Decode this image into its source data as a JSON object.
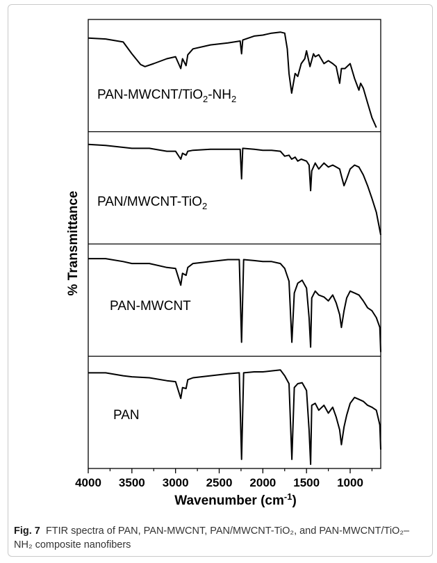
{
  "chart_data": {
    "type": "line",
    "xlabel": "Wavenumber (cm-1)",
    "ylabel": "% Transmittance",
    "xlim": [
      4000,
      650
    ],
    "xticks": [
      4000,
      3500,
      3000,
      2500,
      2000,
      1500,
      1000
    ],
    "series": [
      {
        "name": "PAN-MWCNT/TiO2-NH2",
        "x": [
          4000,
          3800,
          3600,
          3500,
          3400,
          3350,
          3250,
          3100,
          3000,
          2940,
          2920,
          2880,
          2860,
          2800,
          2600,
          2400,
          2260,
          2244,
          2230,
          2100,
          2000,
          1900,
          1800,
          1750,
          1720,
          1700,
          1670,
          1630,
          1600,
          1560,
          1520,
          1500,
          1460,
          1420,
          1400,
          1360,
          1300,
          1250,
          1200,
          1160,
          1120,
          1100,
          1060,
          1000,
          950,
          900,
          880,
          850,
          800,
          750,
          700
        ],
        "y": [
          0.91,
          0.9,
          0.87,
          0.75,
          0.64,
          0.62,
          0.65,
          0.7,
          0.72,
          0.6,
          0.7,
          0.63,
          0.74,
          0.8,
          0.84,
          0.86,
          0.88,
          0.75,
          0.89,
          0.93,
          0.94,
          0.96,
          0.97,
          0.96,
          0.8,
          0.55,
          0.35,
          0.55,
          0.52,
          0.65,
          0.7,
          0.78,
          0.62,
          0.75,
          0.72,
          0.74,
          0.65,
          0.68,
          0.65,
          0.62,
          0.45,
          0.6,
          0.6,
          0.65,
          0.5,
          0.38,
          0.45,
          0.4,
          0.25,
          0.1,
          0.0
        ]
      },
      {
        "name": "PAN/MWCNT-TiO2",
        "x": [
          4000,
          3800,
          3600,
          3500,
          3300,
          3100,
          3000,
          2940,
          2920,
          2880,
          2860,
          2800,
          2600,
          2400,
          2260,
          2244,
          2230,
          2100,
          2000,
          1900,
          1800,
          1750,
          1700,
          1670,
          1630,
          1600,
          1560,
          1500,
          1470,
          1453,
          1440,
          1400,
          1360,
          1300,
          1250,
          1200,
          1160,
          1120,
          1100,
          1070,
          1040,
          1000,
          950,
          900,
          850,
          800,
          750,
          700,
          650
        ],
        "y": [
          0.97,
          0.96,
          0.94,
          0.93,
          0.93,
          0.9,
          0.9,
          0.82,
          0.88,
          0.86,
          0.9,
          0.91,
          0.92,
          0.92,
          0.92,
          0.62,
          0.93,
          0.92,
          0.91,
          0.91,
          0.9,
          0.85,
          0.86,
          0.82,
          0.84,
          0.8,
          0.82,
          0.8,
          0.76,
          0.5,
          0.7,
          0.78,
          0.72,
          0.78,
          0.74,
          0.76,
          0.74,
          0.72,
          0.65,
          0.55,
          0.62,
          0.72,
          0.76,
          0.74,
          0.66,
          0.55,
          0.42,
          0.28,
          0.05
        ]
      },
      {
        "name": "PAN-MWCNT",
        "x": [
          4000,
          3800,
          3600,
          3500,
          3300,
          3100,
          3000,
          2940,
          2920,
          2880,
          2860,
          2800,
          2600,
          2400,
          2270,
          2244,
          2220,
          2100,
          2000,
          1900,
          1800,
          1750,
          1700,
          1668,
          1640,
          1600,
          1550,
          1500,
          1470,
          1453,
          1440,
          1400,
          1360,
          1300,
          1250,
          1200,
          1160,
          1120,
          1100,
          1070,
          1040,
          1000,
          950,
          900,
          850,
          800,
          750,
          700,
          660,
          650
        ],
        "y": [
          0.95,
          0.95,
          0.92,
          0.9,
          0.9,
          0.86,
          0.85,
          0.68,
          0.8,
          0.78,
          0.86,
          0.9,
          0.92,
          0.94,
          0.94,
          0.1,
          0.94,
          0.93,
          0.92,
          0.92,
          0.9,
          0.85,
          0.72,
          0.1,
          0.6,
          0.7,
          0.73,
          0.65,
          0.35,
          0.05,
          0.55,
          0.62,
          0.58,
          0.56,
          0.52,
          0.58,
          0.5,
          0.38,
          0.25,
          0.42,
          0.55,
          0.62,
          0.6,
          0.58,
          0.52,
          0.45,
          0.42,
          0.35,
          0.25,
          0.0
        ]
      },
      {
        "name": "PAN",
        "x": [
          4000,
          3800,
          3600,
          3500,
          3300,
          3100,
          3000,
          2940,
          2920,
          2880,
          2860,
          2800,
          2600,
          2400,
          2270,
          2244,
          2220,
          2100,
          2000,
          1900,
          1800,
          1750,
          1700,
          1668,
          1640,
          1600,
          1550,
          1500,
          1470,
          1453,
          1440,
          1400,
          1360,
          1300,
          1250,
          1200,
          1160,
          1120,
          1100,
          1070,
          1040,
          1000,
          950,
          900,
          850,
          800,
          750,
          700,
          660,
          650
        ],
        "y": [
          0.93,
          0.93,
          0.9,
          0.89,
          0.88,
          0.85,
          0.84,
          0.67,
          0.78,
          0.77,
          0.86,
          0.88,
          0.9,
          0.92,
          0.93,
          0.05,
          0.93,
          0.94,
          0.94,
          0.95,
          0.96,
          0.9,
          0.82,
          0.05,
          0.78,
          0.82,
          0.83,
          0.75,
          0.35,
          0.0,
          0.6,
          0.62,
          0.55,
          0.6,
          0.52,
          0.58,
          0.48,
          0.35,
          0.2,
          0.38,
          0.5,
          0.62,
          0.68,
          0.66,
          0.64,
          0.6,
          0.58,
          0.55,
          0.4,
          0.15
        ]
      }
    ],
    "grid": false
  },
  "panels": {
    "p1": "PAN-MWCNT/TiO",
    "p1_sub": "2",
    "p1_suffix": "-NH",
    "p1_sub2": "2",
    "p2": "PAN/MWCNT-TiO",
    "p2_sub": "2",
    "p3": "PAN-MWCNT",
    "p4": "PAN"
  },
  "axis": {
    "ylabel": "% Transmittance",
    "xlabel_main": "Wavenumber (cm",
    "xlabel_sup": "-1",
    "xlabel_close": ")"
  },
  "caption": {
    "fig_label": "Fig. 7",
    "text": "FTIR spectra of PAN, PAN-MWCNT, PAN/MWCNT-TiO₂, and PAN-MWCNT/TiO₂–NH₂ composite nanofibers"
  },
  "colors": {
    "line": "#000000",
    "border": "#c9c9c9"
  }
}
